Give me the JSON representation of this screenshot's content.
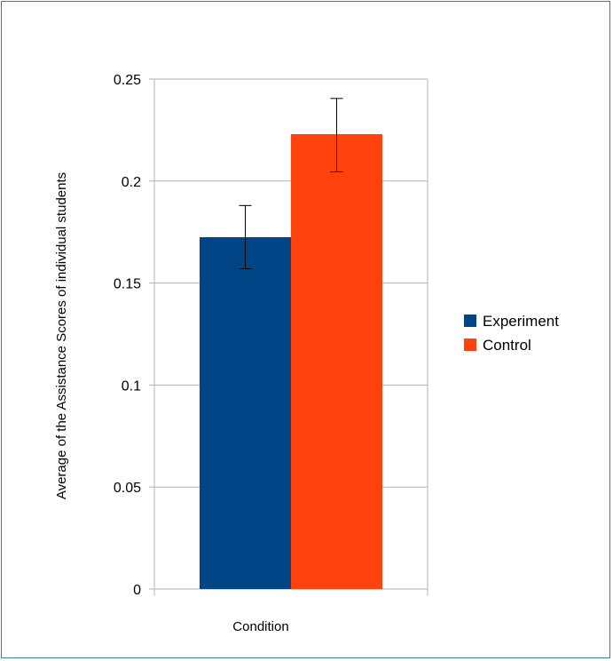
{
  "chart_data": {
    "type": "bar",
    "title": "",
    "xlabel": "Condition",
    "ylabel": "Average of the Assistance Scores of individual students",
    "ylim": [
      0,
      0.25
    ],
    "yticks": [
      0,
      0.05,
      0.1,
      0.15,
      0.2,
      0.25
    ],
    "ytick_labels": [
      "0",
      "0.05",
      "0.1",
      "0.15",
      "0.2",
      "0.25"
    ],
    "grid": true,
    "legend_position": "right",
    "series": [
      {
        "name": "Experiment",
        "value": 0.1725,
        "error_low": 0.157,
        "error_high": 0.188,
        "color": "#004586"
      },
      {
        "name": "Control",
        "value": 0.223,
        "error_low": 0.2045,
        "error_high": 0.2405,
        "color": "#ff420e"
      }
    ]
  }
}
